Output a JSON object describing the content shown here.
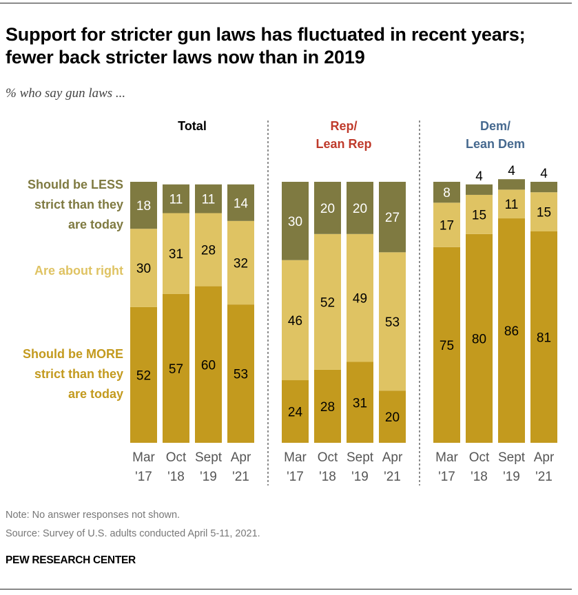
{
  "title": "Support for stricter gun laws has fluctuated in recent years; fewer back stricter laws now than in 2019",
  "subtitle": "% who say gun laws ...",
  "note": "Note: No answer responses not shown.",
  "source": "Source: Survey of U.S. adults conducted April 5-11, 2021.",
  "brand": "PEW RESEARCH CENTER",
  "chart_data": {
    "type": "bar",
    "stacked": true,
    "ylim": [
      0,
      100
    ],
    "categories": [
      [
        "Mar",
        "'17"
      ],
      [
        "Oct",
        "'18"
      ],
      [
        "Sept",
        "'19"
      ],
      [
        "Apr",
        "'21"
      ]
    ],
    "legend_placement": "left",
    "series_legend": [
      {
        "key": "less",
        "label_lines": [
          "Should be LESS",
          "strict than they",
          "are today"
        ],
        "color": "#7f7a41"
      },
      {
        "key": "right",
        "label_lines": [
          "Are about right"
        ],
        "color": "#dfc363"
      },
      {
        "key": "more",
        "label_lines": [
          "Should be MORE",
          "strict than they",
          "are today"
        ],
        "color": "#c39a1e"
      }
    ],
    "panels": [
      {
        "title_lines": [
          "Total"
        ],
        "title_color": "#000000",
        "more": [
          52,
          57,
          60,
          53
        ],
        "right": [
          30,
          31,
          28,
          32
        ],
        "less": [
          18,
          11,
          11,
          14
        ]
      },
      {
        "title_lines": [
          "Rep/",
          "Lean Rep"
        ],
        "title_color": "#bf3a2b",
        "more": [
          24,
          28,
          31,
          20
        ],
        "right": [
          46,
          52,
          49,
          53
        ],
        "less": [
          30,
          20,
          20,
          27
        ]
      },
      {
        "title_lines": [
          "Dem/",
          "Lean Dem"
        ],
        "title_color": "#46698f",
        "more": [
          75,
          80,
          86,
          81
        ],
        "right": [
          17,
          15,
          11,
          15
        ],
        "less": [
          8,
          4,
          4,
          4
        ]
      }
    ]
  }
}
